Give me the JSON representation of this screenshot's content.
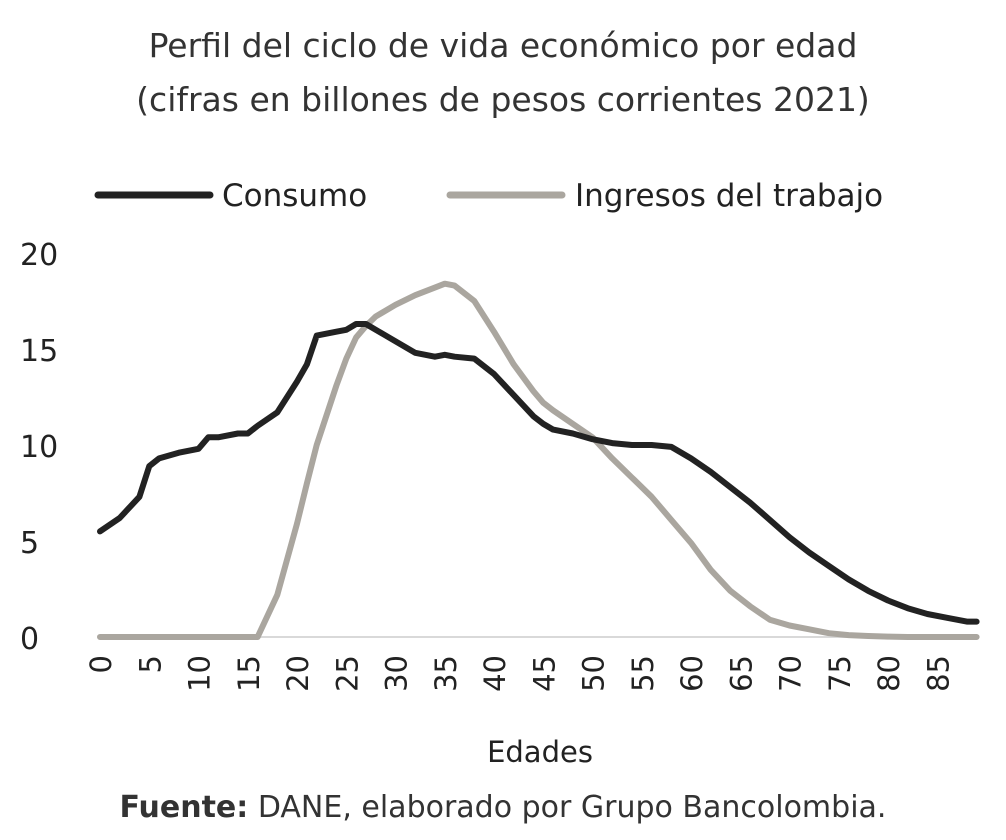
{
  "chart_data": {
    "type": "line",
    "title": "Perfil del ciclo de vida económico por edad",
    "subtitle": "(cifras en billones de pesos corrientes 2021)",
    "xlabel": "Edades",
    "ylabel": "",
    "ylim": [
      0,
      20
    ],
    "yticks": [
      "0",
      "5",
      "10",
      "15",
      "20"
    ],
    "xticks": [
      "0",
      "5",
      "10",
      "15",
      "20",
      "25",
      "30",
      "35",
      "40",
      "45",
      "50",
      "55",
      "60",
      "65",
      "70",
      "75",
      "80",
      "85"
    ],
    "grid": false,
    "legend": "top",
    "x": [
      0,
      2,
      4,
      5,
      6,
      8,
      10,
      11,
      12,
      14,
      15,
      16,
      18,
      20,
      21,
      22,
      24,
      25,
      26,
      27,
      28,
      30,
      32,
      34,
      35,
      36,
      38,
      40,
      42,
      44,
      45,
      46,
      48,
      50,
      52,
      54,
      56,
      58,
      60,
      62,
      64,
      66,
      68,
      70,
      72,
      74,
      76,
      78,
      80,
      82,
      84,
      86,
      88,
      89
    ],
    "series": [
      {
        "name": "Consumo",
        "color": "#222222",
        "values": [
          5.5,
          6.2,
          7.3,
          8.9,
          9.3,
          9.6,
          9.8,
          10.4,
          10.4,
          10.6,
          10.6,
          11.0,
          11.7,
          13.3,
          14.2,
          15.7,
          15.9,
          16.0,
          16.3,
          16.3,
          16.0,
          15.4,
          14.8,
          14.6,
          14.7,
          14.6,
          14.5,
          13.7,
          12.6,
          11.5,
          11.1,
          10.8,
          10.6,
          10.3,
          10.1,
          10.0,
          10.0,
          9.9,
          9.3,
          8.6,
          7.8,
          7.0,
          6.1,
          5.2,
          4.4,
          3.7,
          3.0,
          2.4,
          1.9,
          1.5,
          1.2,
          1.0,
          0.8,
          0.8
        ]
      },
      {
        "name": "Ingresos del trabajo",
        "color": "#aaa69f",
        "values": [
          0,
          0,
          0,
          0,
          0,
          0,
          0,
          0,
          0,
          0,
          0,
          0,
          2.2,
          5.9,
          8.0,
          10.0,
          13.1,
          14.5,
          15.6,
          16.2,
          16.7,
          17.3,
          17.8,
          18.2,
          18.4,
          18.3,
          17.5,
          15.9,
          14.2,
          12.8,
          12.2,
          11.8,
          11.1,
          10.4,
          9.3,
          8.3,
          7.3,
          6.1,
          4.9,
          3.5,
          2.4,
          1.6,
          0.9,
          0.6,
          0.4,
          0.2,
          0.1,
          0.05,
          0.02,
          0,
          0,
          0,
          0,
          0
        ]
      }
    ]
  },
  "source": {
    "label": "Fuente:",
    "text": "DANE, elaborado por Grupo Bancolombia."
  }
}
